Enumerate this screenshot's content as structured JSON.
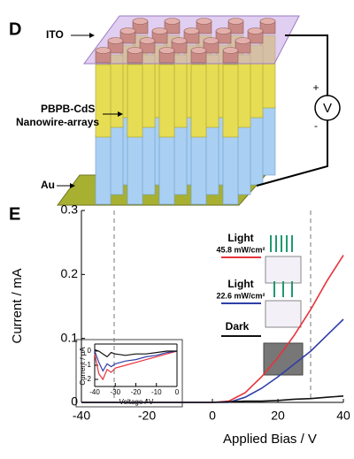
{
  "diagram": {
    "panel_label": "D",
    "labels": [
      "ITO",
      "PBPB-CdS",
      "Nanowire-arrays",
      "Au"
    ],
    "meter": "V",
    "plus": "+",
    "minus": "-"
  },
  "chart_data": [
    {
      "type": "line",
      "panel_label": "E",
      "x_label": "Applied Bias / V",
      "y_label": "Current / mA",
      "x": [
        -40,
        -35,
        -30,
        -25,
        -20,
        -15,
        -10,
        -5,
        0,
        5,
        10,
        15,
        20,
        25,
        30,
        35,
        40
      ],
      "series": [
        {
          "name": "Light",
          "subtitle": "45.8 mW/cm²",
          "color": "#e8323c",
          "values": [
            0,
            0,
            0,
            0,
            0,
            0,
            0,
            0,
            0,
            0.002,
            0.015,
            0.04,
            0.07,
            0.105,
            0.145,
            0.19,
            0.23
          ]
        },
        {
          "name": "Light",
          "subtitle": "22.6 mW/cm²",
          "color": "#2f3fa8",
          "values": [
            0,
            0,
            0,
            0,
            0,
            0,
            0,
            0,
            0,
            0,
            0.008,
            0.022,
            0.04,
            0.06,
            0.08,
            0.105,
            0.13
          ]
        },
        {
          "name": "Dark",
          "color": "#111111",
          "values": [
            0,
            0,
            0,
            0,
            0,
            0,
            0,
            0,
            0,
            0.001,
            0.002,
            0.002,
            0.003,
            0.005,
            0.006,
            0.008,
            0.01
          ]
        }
      ],
      "xlim": [
        -40,
        40
      ],
      "ylim": [
        0,
        0.3
      ],
      "xticks": [
        -40,
        -20,
        0,
        20,
        40
      ],
      "yticks": [
        0,
        0.1,
        0.2,
        0.3
      ],
      "vlines": [
        -30,
        30
      ]
    },
    {
      "type": "line",
      "x_label": "Voltage / V",
      "y_label": "Current / μA",
      "x": [
        -40,
        -38,
        -36,
        -34,
        -32,
        -30,
        -25,
        -20,
        -15,
        -10,
        -5,
        0
      ],
      "series": [
        {
          "color": "#e8323c",
          "values": [
            -0.2,
            -1.6,
            -2.0,
            -1.3,
            -1.5,
            -1.2,
            -1.0,
            -0.8,
            -0.6,
            -0.4,
            -0.2,
            0
          ]
        },
        {
          "color": "#2f3fa8",
          "values": [
            0,
            -0.8,
            -1.4,
            -0.9,
            -1.1,
            -0.9,
            -0.7,
            -0.6,
            -0.4,
            -0.3,
            -0.1,
            0
          ]
        },
        {
          "color": "#111111",
          "values": [
            0.1,
            0,
            -0.2,
            -0.4,
            -0.1,
            -0.2,
            -0.3,
            -0.2,
            -0.2,
            -0.1,
            0,
            0
          ]
        }
      ],
      "xlim": [
        -40,
        0
      ],
      "ylim": [
        -2.5,
        0.5
      ],
      "xticks": [
        -40,
        -30,
        -20,
        -10,
        0
      ],
      "yticks": [
        0,
        -1,
        -2
      ]
    }
  ]
}
